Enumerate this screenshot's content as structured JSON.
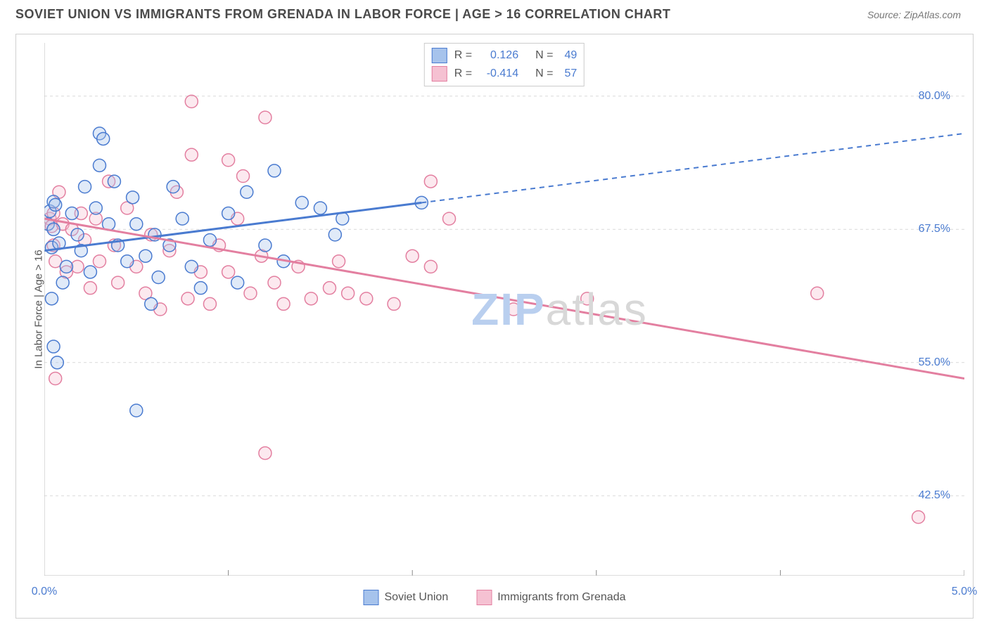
{
  "title": "SOVIET UNION VS IMMIGRANTS FROM GRENADA IN LABOR FORCE | AGE > 16 CORRELATION CHART",
  "source_label": "Source: ZipAtlas.com",
  "ylabel": "In Labor Force | Age > 16",
  "watermark": {
    "part1": "ZIP",
    "part2": "atlas"
  },
  "chart": {
    "type": "scatter-with-regression",
    "background_color": "#ffffff",
    "border_color": "#d0d0d0",
    "grid_color": "#d9d9d9",
    "grid_dash": "4,4",
    "xlim": [
      0.0,
      5.0
    ],
    "ylim": [
      35.0,
      85.0
    ],
    "ytick_values": [
      42.5,
      55.0,
      67.5,
      80.0
    ],
    "ytick_labels": [
      "42.5%",
      "55.0%",
      "67.5%",
      "80.0%"
    ],
    "xtick_values": [
      0.0,
      1.0,
      2.0,
      3.0,
      4.0,
      5.0
    ],
    "xtick_visible_labels": {
      "0.0": "0.0%",
      "5.0": "5.0%"
    },
    "tick_label_color": "#4a7bd0",
    "tick_label_fontsize": 16,
    "axis_label_color": "#555555",
    "axis_label_fontsize": 15,
    "marker_radius": 9,
    "marker_stroke_width": 1.5,
    "marker_fill_opacity": 0.35,
    "regression_line_width": 3,
    "regression_dash_extrapolate": "7,6"
  },
  "series": [
    {
      "id": "soviet",
      "label": "Soviet Union",
      "color_stroke": "#4a7bd0",
      "color_fill": "#a6c3ec",
      "r": 0.126,
      "n": 49,
      "regression": {
        "x1": 0.0,
        "y1": 65.5,
        "x2": 2.05,
        "y2": 70.0,
        "x3": 5.0,
        "y3": 76.5
      },
      "points": [
        [
          0.02,
          68.0
        ],
        [
          0.03,
          69.2
        ],
        [
          0.04,
          65.8
        ],
        [
          0.05,
          70.1
        ],
        [
          0.05,
          67.5
        ],
        [
          0.06,
          69.8
        ],
        [
          0.08,
          66.2
        ],
        [
          0.05,
          56.5
        ],
        [
          0.07,
          55.0
        ],
        [
          0.04,
          61.0
        ],
        [
          0.1,
          62.5
        ],
        [
          0.12,
          64.0
        ],
        [
          0.15,
          69.0
        ],
        [
          0.18,
          67.0
        ],
        [
          0.2,
          65.5
        ],
        [
          0.22,
          71.5
        ],
        [
          0.25,
          63.5
        ],
        [
          0.28,
          69.5
        ],
        [
          0.3,
          76.5
        ],
        [
          0.32,
          76.0
        ],
        [
          0.3,
          73.5
        ],
        [
          0.35,
          68.0
        ],
        [
          0.38,
          72.0
        ],
        [
          0.4,
          66.0
        ],
        [
          0.45,
          64.5
        ],
        [
          0.48,
          70.5
        ],
        [
          0.5,
          68.0
        ],
        [
          0.55,
          65.0
        ],
        [
          0.58,
          60.5
        ],
        [
          0.6,
          67.0
        ],
        [
          0.62,
          63.0
        ],
        [
          0.68,
          66.0
        ],
        [
          0.7,
          71.5
        ],
        [
          0.75,
          68.5
        ],
        [
          0.8,
          64.0
        ],
        [
          0.85,
          62.0
        ],
        [
          0.5,
          50.5
        ],
        [
          0.9,
          66.5
        ],
        [
          1.0,
          69.0
        ],
        [
          1.05,
          62.5
        ],
        [
          1.1,
          71.0
        ],
        [
          1.2,
          66.0
        ],
        [
          1.25,
          73.0
        ],
        [
          1.3,
          64.5
        ],
        [
          1.4,
          70.0
        ],
        [
          1.5,
          69.5
        ],
        [
          1.58,
          67.0
        ],
        [
          1.62,
          68.5
        ],
        [
          2.05,
          70.0
        ]
      ]
    },
    {
      "id": "grenada",
      "label": "Immigrants from Grenada",
      "color_stroke": "#e37fa0",
      "color_fill": "#f5c1d2",
      "r": -0.414,
      "n": 57,
      "regression": {
        "x1": 0.0,
        "y1": 68.5,
        "x2": 5.0,
        "y2": 53.5
      },
      "points": [
        [
          0.03,
          68.5
        ],
        [
          0.04,
          67.8
        ],
        [
          0.05,
          69.0
        ],
        [
          0.05,
          66.0
        ],
        [
          0.06,
          64.5
        ],
        [
          0.08,
          71.0
        ],
        [
          0.1,
          68.0
        ],
        [
          0.12,
          63.5
        ],
        [
          0.15,
          67.5
        ],
        [
          0.18,
          64.0
        ],
        [
          0.2,
          69.0
        ],
        [
          0.22,
          66.5
        ],
        [
          0.06,
          53.5
        ],
        [
          0.25,
          62.0
        ],
        [
          0.28,
          68.5
        ],
        [
          0.3,
          64.5
        ],
        [
          0.35,
          72.0
        ],
        [
          0.38,
          66.0
        ],
        [
          0.4,
          62.5
        ],
        [
          0.45,
          69.5
        ],
        [
          0.5,
          64.0
        ],
        [
          0.55,
          61.5
        ],
        [
          0.58,
          67.0
        ],
        [
          0.63,
          60.0
        ],
        [
          0.68,
          65.5
        ],
        [
          0.72,
          71.0
        ],
        [
          0.78,
          61.0
        ],
        [
          0.8,
          79.5
        ],
        [
          0.8,
          74.5
        ],
        [
          0.85,
          63.5
        ],
        [
          0.9,
          60.5
        ],
        [
          0.95,
          66.0
        ],
        [
          1.0,
          63.5
        ],
        [
          1.0,
          74.0
        ],
        [
          1.05,
          68.5
        ],
        [
          1.08,
          72.5
        ],
        [
          1.12,
          61.5
        ],
        [
          1.18,
          65.0
        ],
        [
          1.2,
          78.0
        ],
        [
          1.2,
          46.5
        ],
        [
          1.25,
          62.5
        ],
        [
          1.3,
          60.5
        ],
        [
          1.38,
          64.0
        ],
        [
          1.45,
          61.0
        ],
        [
          1.55,
          62.0
        ],
        [
          1.6,
          64.5
        ],
        [
          1.65,
          61.5
        ],
        [
          1.75,
          61.0
        ],
        [
          1.9,
          60.5
        ],
        [
          2.0,
          65.0
        ],
        [
          2.1,
          72.0
        ],
        [
          2.2,
          68.5
        ],
        [
          2.55,
          60.0
        ],
        [
          2.95,
          61.0
        ],
        [
          4.2,
          61.5
        ],
        [
          4.75,
          40.5
        ],
        [
          2.1,
          64.0
        ]
      ]
    }
  ],
  "corr_legend": {
    "r_label": "R =",
    "n_label": "N ="
  },
  "bottom_legend": {
    "items": [
      "soviet",
      "grenada"
    ]
  }
}
